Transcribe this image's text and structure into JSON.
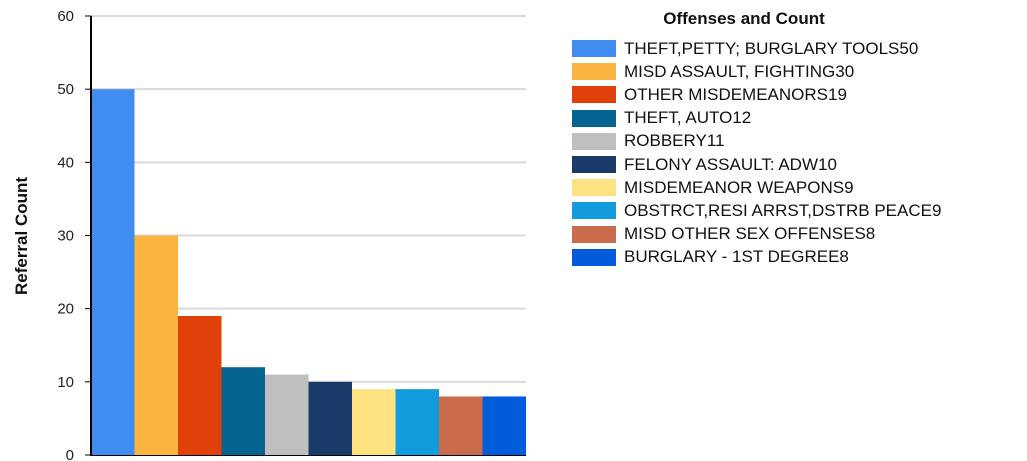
{
  "chart_data": {
    "type": "bar",
    "title": "",
    "xlabel": "",
    "ylabel": "Referral Count",
    "ylim": [
      0,
      60
    ],
    "yticks": [
      0,
      10,
      20,
      30,
      40,
      50,
      60
    ],
    "grid": true,
    "legend_position": "right",
    "legend_title": "Offenses and Count",
    "categories": [
      "THEFT,PETTY; BURGLARY TOOLS",
      "MISD ASSAULT, FIGHTING",
      "OTHER MISDEMEANORS",
      "THEFT, AUTO",
      "ROBBERY",
      "FELONY ASSAULT: ADW",
      "MISDEMEANOR WEAPONS",
      "OBSTRCT,RESI ARRST,DSTRB PEACE",
      "MISD OTHER SEX OFFENSES",
      "BURGLARY - 1ST DEGREE"
    ],
    "values": [
      50,
      30,
      19,
      12,
      11,
      10,
      9,
      9,
      8,
      8
    ],
    "legend_labels": [
      "THEFT,PETTY; BURGLARY TOOLS50",
      "MISD ASSAULT, FIGHTING30",
      "OTHER MISDEMEANORS19",
      "THEFT, AUTO12",
      "ROBBERY11",
      "FELONY ASSAULT: ADW10",
      "MISDEMEANOR WEAPONS9",
      "OBSTRCT,RESI ARRST,DSTRB PEACE9",
      "MISD OTHER SEX OFFENSES8",
      "BURGLARY - 1ST DEGREE8"
    ],
    "colors": [
      "#418cf0",
      "#fcb441",
      "#e0400a",
      "#056492",
      "#bfbfbf",
      "#1a3b69",
      "#ffe382",
      "#129cdd",
      "#ca6b4b",
      "#005cdb"
    ]
  }
}
